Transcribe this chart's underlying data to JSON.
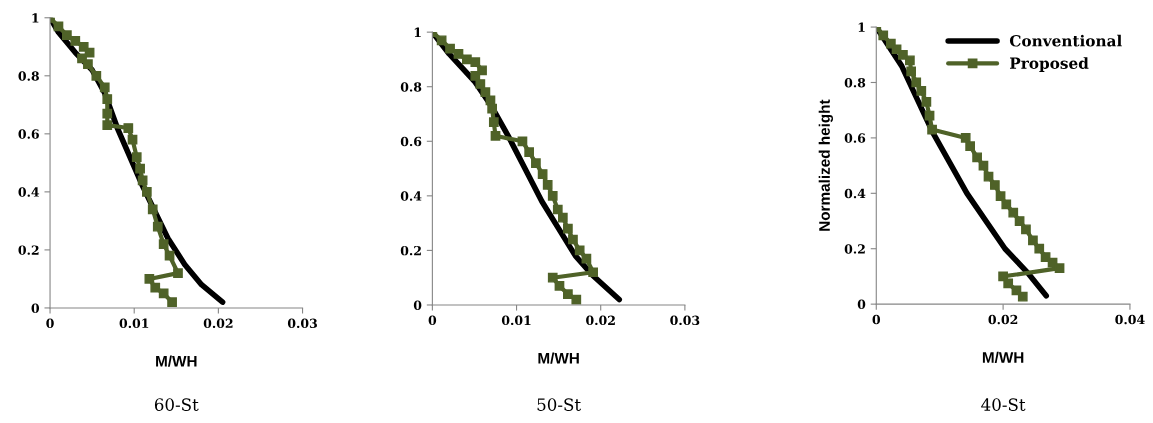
{
  "chart_data": [
    {
      "type": "line",
      "xlabel": "M/WH",
      "annotations": [
        "60-St"
      ],
      "xlim": [
        0,
        0.03
      ],
      "xticks": [
        0,
        0.01,
        0.02,
        0.03
      ],
      "ylim": [
        0,
        1
      ],
      "yticks": [
        0,
        0.2,
        0.4,
        0.6,
        0.8,
        1
      ],
      "grid": false,
      "legend": false,
      "series": [
        {
          "color": "#000000",
          "marker": "none",
          "x": [
            0,
            0.001,
            0.003,
            0.005,
            0.0065,
            0.008,
            0.0095,
            0.011,
            0.0125,
            0.014,
            0.016,
            0.018,
            0.0205
          ],
          "values": [
            1,
            0.95,
            0.88,
            0.82,
            0.74,
            0.62,
            0.52,
            0.42,
            0.33,
            0.24,
            0.15,
            0.08,
            0.02
          ]
        },
        {
          "color": "#4f6228",
          "marker": "square",
          "x": [
            0,
            0.001,
            0.002,
            0.003,
            0.004,
            0.0047,
            0.0038,
            0.0045,
            0.0055,
            0.0065,
            0.0068,
            0.0068,
            0.0068,
            0.0093,
            0.0098,
            0.0103,
            0.0107,
            0.011,
            0.0115,
            0.0122,
            0.0128,
            0.0135,
            0.0142,
            0.0152,
            0.0118,
            0.0125,
            0.0135,
            0.0145
          ],
          "values": [
            1,
            0.97,
            0.94,
            0.92,
            0.9,
            0.88,
            0.86,
            0.84,
            0.8,
            0.76,
            0.72,
            0.67,
            0.63,
            0.62,
            0.58,
            0.52,
            0.48,
            0.44,
            0.4,
            0.34,
            0.28,
            0.22,
            0.18,
            0.12,
            0.1,
            0.07,
            0.05,
            0.02
          ]
        }
      ]
    },
    {
      "type": "line",
      "xlabel": "M/WH",
      "annotations": [
        "50-St"
      ],
      "xlim": [
        0,
        0.03
      ],
      "xticks": [
        0,
        0.01,
        0.02,
        0.03
      ],
      "ylim": [
        0,
        1
      ],
      "yticks": [
        0,
        0.2,
        0.4,
        0.6,
        0.8,
        1
      ],
      "grid": false,
      "legend": false,
      "series": [
        {
          "color": "#000000",
          "marker": "none",
          "x": [
            0,
            0.002,
            0.005,
            0.007,
            0.009,
            0.011,
            0.013,
            0.015,
            0.017,
            0.019,
            0.0222
          ],
          "values": [
            1,
            0.92,
            0.82,
            0.73,
            0.62,
            0.5,
            0.38,
            0.28,
            0.18,
            0.11,
            0.02
          ]
        },
        {
          "color": "#4f6228",
          "marker": "square",
          "x": [
            0,
            0.0011,
            0.0021,
            0.0031,
            0.0041,
            0.0051,
            0.0059,
            0.0051,
            0.0057,
            0.0063,
            0.0069,
            0.0071,
            0.0073,
            0.0075,
            0.0107,
            0.0115,
            0.0123,
            0.0131,
            0.0137,
            0.0143,
            0.0149,
            0.0155,
            0.0161,
            0.0167,
            0.0175,
            0.0183,
            0.0191,
            0.0143,
            0.0151,
            0.0161,
            0.0171
          ],
          "values": [
            1,
            0.97,
            0.94,
            0.92,
            0.9,
            0.89,
            0.86,
            0.84,
            0.81,
            0.78,
            0.75,
            0.72,
            0.67,
            0.62,
            0.6,
            0.56,
            0.52,
            0.48,
            0.44,
            0.4,
            0.35,
            0.32,
            0.28,
            0.24,
            0.2,
            0.17,
            0.12,
            0.1,
            0.07,
            0.04,
            0.02
          ]
        }
      ]
    },
    {
      "type": "line",
      "xlabel": "M/WH",
      "ylabel": "Normalized height",
      "annotations": [
        "40-St"
      ],
      "xlim": [
        0,
        0.04
      ],
      "xticks": [
        0,
        0.02,
        0.04
      ],
      "ylim": [
        0,
        1
      ],
      "yticks": [
        0,
        0.2,
        0.4,
        0.6,
        0.8,
        1
      ],
      "grid": false,
      "legend": "top right",
      "series": [
        {
          "name": "Conventional",
          "color": "#000000",
          "marker": "none",
          "x": [
            0,
            0.004,
            0.0089,
            0.0143,
            0.0203,
            0.024,
            0.0268
          ],
          "values": [
            1,
            0.86,
            0.62,
            0.4,
            0.2,
            0.11,
            0.03
          ]
        },
        {
          "name": "Proposed",
          "color": "#4f6228",
          "marker": "square",
          "x": [
            0,
            0.0011,
            0.0023,
            0.0032,
            0.0042,
            0.0053,
            0.0055,
            0.0063,
            0.0071,
            0.0079,
            0.0084,
            0.0088,
            0.0141,
            0.0148,
            0.0159,
            0.0169,
            0.0177,
            0.0187,
            0.0196,
            0.0205,
            0.0216,
            0.0226,
            0.0236,
            0.0247,
            0.0257,
            0.0267,
            0.0278,
            0.0289,
            0.02,
            0.0208,
            0.0221,
            0.0231
          ],
          "values": [
            1,
            0.97,
            0.94,
            0.92,
            0.9,
            0.88,
            0.84,
            0.8,
            0.77,
            0.73,
            0.68,
            0.63,
            0.6,
            0.57,
            0.53,
            0.5,
            0.46,
            0.43,
            0.39,
            0.36,
            0.33,
            0.3,
            0.27,
            0.23,
            0.2,
            0.17,
            0.15,
            0.13,
            0.1,
            0.075,
            0.05,
            0.027
          ]
        }
      ]
    }
  ]
}
